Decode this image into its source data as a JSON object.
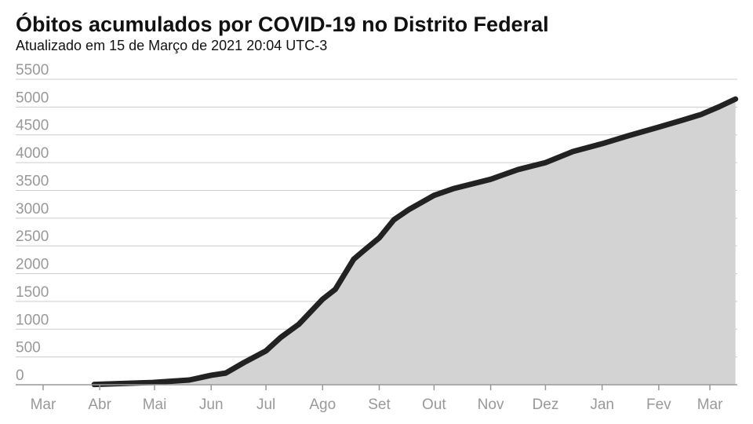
{
  "chart_data": {
    "type": "area",
    "title": "Óbitos acumulados por COVID-19 no Distrito Federal",
    "subtitle": "Atualizado em 15 de Março de 2021 20:04 UTC-3",
    "x": [
      28,
      60,
      80,
      92,
      100,
      110,
      122,
      130,
      140,
      153,
      160,
      170,
      175,
      184,
      192,
      200,
      214,
      225,
      245,
      260,
      275,
      290,
      306,
      320,
      337,
      350,
      360,
      370,
      379
    ],
    "values": [
      5,
      40,
      85,
      170,
      210,
      400,
      610,
      850,
      1090,
      1540,
      1720,
      2260,
      2400,
      2645,
      2970,
      3150,
      3410,
      3535,
      3700,
      3875,
      4000,
      4200,
      4340,
      4480,
      4640,
      4765,
      4865,
      5005,
      5145
    ],
    "color": "#222222",
    "fill": "#d3d3d3",
    "xlim": [
      -15,
      380
    ],
    "ylim": [
      0,
      5500
    ],
    "xticks": [
      {
        "value": 0,
        "label": "Mar"
      },
      {
        "value": 31,
        "label": "Abr"
      },
      {
        "value": 61,
        "label": "Mai"
      },
      {
        "value": 92,
        "label": "Jun"
      },
      {
        "value": 122,
        "label": "Jul"
      },
      {
        "value": 153,
        "label": "Ago"
      },
      {
        "value": 184,
        "label": "Set"
      },
      {
        "value": 214,
        "label": "Out"
      },
      {
        "value": 245,
        "label": "Nov"
      },
      {
        "value": 275,
        "label": "Dez"
      },
      {
        "value": 306,
        "label": "Jan"
      },
      {
        "value": 337,
        "label": "Fev"
      },
      {
        "value": 365,
        "label": "Mar"
      }
    ],
    "yticks": [
      0,
      500,
      1000,
      1500,
      2000,
      2500,
      3000,
      3500,
      4000,
      4500,
      5000,
      5500
    ],
    "grid": true
  }
}
